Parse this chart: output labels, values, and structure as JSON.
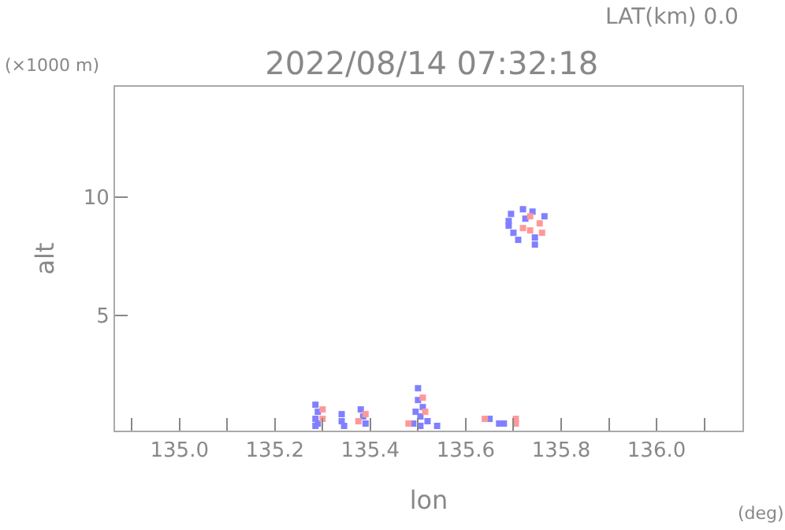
{
  "chart_data": {
    "type": "scatter",
    "title": "2022/08/14 07:32:18",
    "xlabel": "lon",
    "ylabel": "alt",
    "annotations": [
      "LAT(km) 0.0",
      "(×1000 m)",
      "(deg)"
    ],
    "xlim": [
      134.865,
      136.18
    ],
    "xticks": [
      {
        "value": 134.9,
        "label": null
      },
      {
        "value": 135,
        "label": "135.0"
      },
      {
        "value": 135.1,
        "label": null
      },
      {
        "value": 135.2,
        "label": "135.2"
      },
      {
        "value": 135.3,
        "label": null
      },
      {
        "value": 135.4,
        "label": "135.4"
      },
      {
        "value": 135.5,
        "label": null
      },
      {
        "value": 135.6,
        "label": "135.6"
      },
      {
        "value": 135.7,
        "label": null
      },
      {
        "value": 135.8,
        "label": "135.8"
      },
      {
        "value": 135.9,
        "label": null
      },
      {
        "value": 136,
        "label": "136.0"
      },
      {
        "value": 136.1,
        "label": null
      }
    ],
    "ylim": [
      0.1,
      14.7
    ],
    "yticks": [
      5,
      10
    ],
    "grid": false,
    "marker": "square",
    "series": [
      {
        "color": "#8080ff",
        "x": [
          135.285,
          135.29,
          135.285,
          135.29,
          135.285,
          135.34,
          135.34,
          135.345,
          135.38,
          135.385,
          135.39,
          135.49,
          135.495,
          135.5,
          135.5,
          135.505,
          135.51,
          135.505,
          135.52,
          135.54,
          135.65,
          135.67,
          135.68,
          135.69,
          135.695,
          135.69,
          135.7,
          135.71,
          135.72,
          135.725,
          135.745,
          135.74,
          135.745,
          135.765
        ],
        "values": [
          1.2,
          0.9,
          0.6,
          0.4,
          0.3,
          0.8,
          0.5,
          0.3,
          1.0,
          0.7,
          0.4,
          0.4,
          0.9,
          1.9,
          1.4,
          0.7,
          1.1,
          0.3,
          0.5,
          0.3,
          0.6,
          0.4,
          0.4,
          8.8,
          9.3,
          9.0,
          8.5,
          8.2,
          9.5,
          9.1,
          8.0,
          9.4,
          8.3,
          9.2
        ]
      },
      {
        "color": "#ff9999",
        "x": [
          135.3,
          135.3,
          135.39,
          135.375,
          135.48,
          135.51,
          135.515,
          135.64,
          135.705,
          135.705,
          135.72,
          135.735,
          135.735,
          135.755,
          135.76
        ],
        "values": [
          1.0,
          0.6,
          0.8,
          0.5,
          0.4,
          1.5,
          0.9,
          0.6,
          0.6,
          0.4,
          8.7,
          9.2,
          8.6,
          8.9,
          8.5
        ]
      }
    ]
  }
}
